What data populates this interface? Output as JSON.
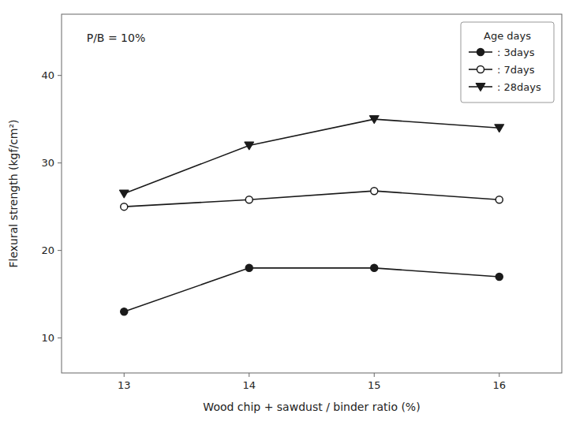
{
  "chart_data": {
    "type": "line",
    "x": [
      13,
      14,
      15,
      16
    ],
    "series": [
      {
        "name": ": 3days",
        "color": "#1a1a1a",
        "marker": "circle",
        "values": [
          13.0,
          18.0,
          18.0,
          17.0
        ]
      },
      {
        "name": ": 7days",
        "color": "#1a1a1a",
        "marker": "circle-open",
        "values": [
          25.0,
          25.8,
          26.8,
          25.8
        ]
      },
      {
        "name": ": 28days",
        "color": "#1a1a1a",
        "marker": "triangle-down",
        "values": [
          26.5,
          32.0,
          35.0,
          34.0
        ]
      }
    ],
    "xlabel": "Wood chip + sawdust / binder ratio (%)",
    "ylabel": "Flexural strength (kgf/cm²)",
    "annotation": "P/B = 10%",
    "legend_title": "Age days",
    "legend": "upper right",
    "grid": false,
    "xlim": [
      12.5,
      16.5
    ],
    "ylim": [
      6,
      47
    ],
    "xticks": [
      13,
      14,
      15,
      16
    ],
    "yticks": [
      10,
      20,
      30,
      40
    ]
  }
}
